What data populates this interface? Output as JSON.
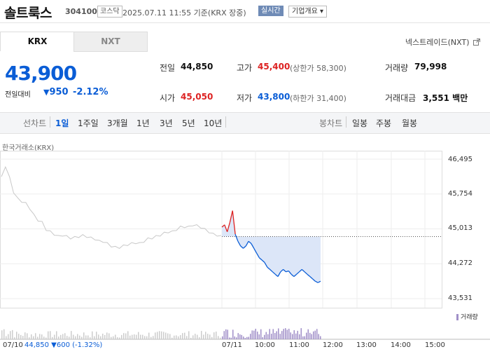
{
  "header": {
    "name": "솔트룩스",
    "code": "304100",
    "market_badge": "코스닥",
    "datetime": "2025.07.11 11:55 기준(KRX 장중)",
    "realtime_label": "실시간",
    "corp_info_label": "기업개요 ▾"
  },
  "tabs": {
    "krx": "KRX",
    "nxt": "NXT"
  },
  "nexttrade_label": "넥스트레이드(NXT)",
  "nexttrade_icon": "external-link-icon",
  "price": {
    "current": "43,900",
    "change_label": "전일대비",
    "change_arrow": "▼",
    "change_value": "950",
    "change_pct": "-2.12%"
  },
  "stats": {
    "prev_close_label": "전일",
    "prev_close": "44,850",
    "high_label": "고가",
    "high": "45,400",
    "upper_limit": "(상한가 58,300)",
    "volume_label": "거래량",
    "volume": "79,998",
    "open_label": "시가",
    "open": "45,050",
    "low_label": "저가",
    "low": "43,800",
    "lower_limit": "(하한가 31,400)",
    "amount_label": "거래대금",
    "amount": "3,551",
    "amount_unit": "백만"
  },
  "periods": {
    "line_chart_label": "선차트",
    "items": [
      "1일",
      "1주일",
      "3개월",
      "1년",
      "3년",
      "5년",
      "10년"
    ],
    "selected": "1일",
    "candle_chart_label": "봉차트",
    "candle_items": [
      "일봉",
      "주봉",
      "월봉"
    ]
  },
  "chart_source": "한국거래소(KRX)",
  "volume_legend": "거래량",
  "footer": {
    "prev_date": "07/10",
    "prev_summary": "44,850 ▼600 (-1.32%)"
  },
  "colors": {
    "up": "#dd2222",
    "down": "#0a5dd6",
    "prev_day_line": "#c8c8c8",
    "fill": "#dce6f8"
  },
  "chart_data": {
    "type": "line",
    "y_ticks": [
      "46,495",
      "45,754",
      "45,013",
      "44,272",
      "43,531"
    ],
    "ylim": [
      43531,
      46495
    ],
    "x_labels": [
      "07/11",
      "10:00",
      "11:00",
      "12:00",
      "13:00",
      "14:00",
      "15:00"
    ],
    "reference_line": 44850,
    "series": [
      {
        "period": "07/10",
        "values": [
          46100,
          46350,
          46100,
          45800,
          45650,
          45600,
          45550,
          45450,
          45300,
          45200,
          45150,
          45000,
          44950,
          44900,
          44850,
          44880,
          44850,
          44820,
          44830,
          44850,
          44870,
          44850,
          44820,
          44800,
          44750,
          44750,
          44700,
          44650,
          44620,
          44620,
          44650,
          44680,
          44700,
          44720,
          44700,
          44750,
          44800,
          44820,
          44850,
          44880,
          44920,
          44950,
          44950,
          45000,
          45050,
          45060,
          45050,
          45100,
          45080,
          45050,
          45000,
          44950,
          44900,
          44880,
          44850
        ]
      },
      {
        "period": "07/11",
        "values": [
          45050,
          45100,
          44950,
          45150,
          45400,
          44900,
          44750,
          44650,
          44600,
          44650,
          44750,
          44700,
          44600,
          44500,
          44400,
          44350,
          44300,
          44200,
          44150,
          44100,
          44050,
          44000,
          44100,
          44150,
          44100,
          44120,
          44050,
          44000,
          44050,
          44100,
          44150,
          44100,
          44050,
          44000,
          43950,
          43900,
          43870,
          43900
        ]
      }
    ],
    "volume_note": "bars below chart"
  }
}
